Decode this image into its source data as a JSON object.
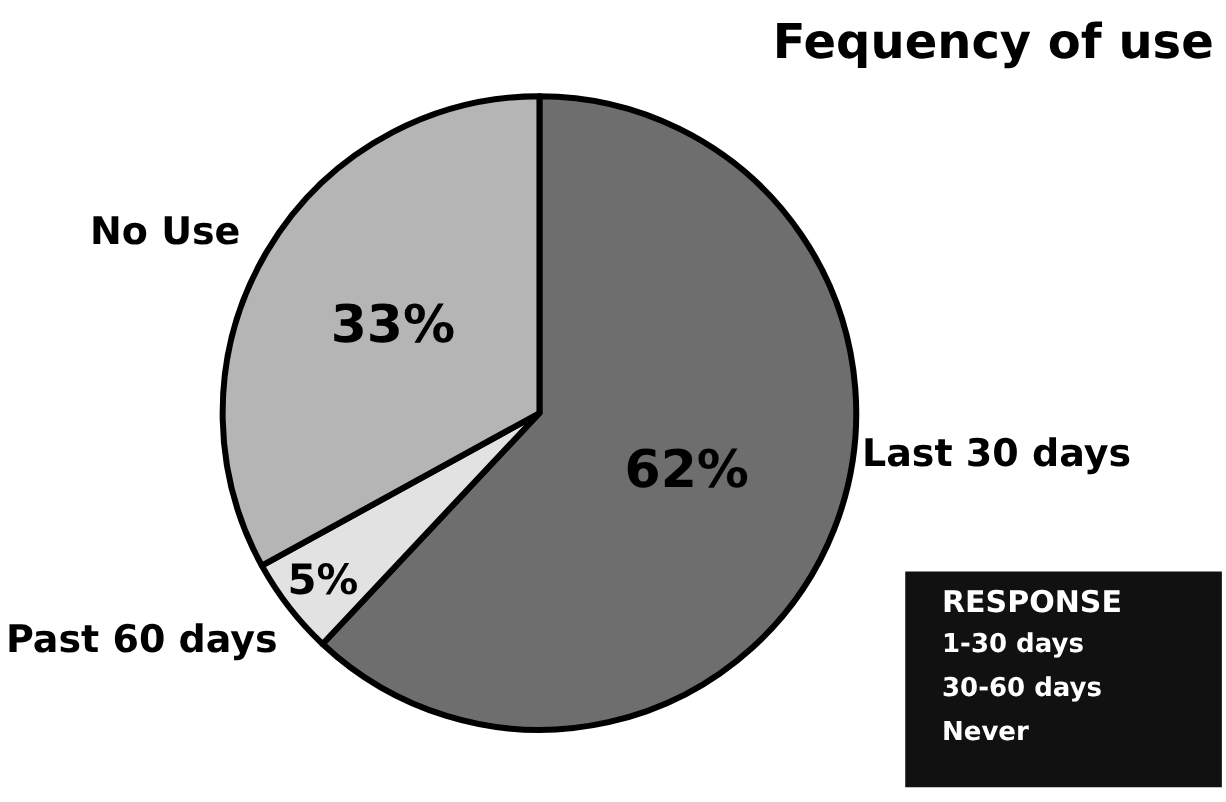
{
  "chart_data": {
    "type": "pie",
    "title": "Fequency of use",
    "categories": [
      "Last 30 days",
      "Past 60 days",
      "No Use"
    ],
    "values": [
      62,
      5,
      33
    ],
    "colors": [
      "#6e6e6e",
      "#e2e2e2",
      "#b5b5b5"
    ],
    "value_labels": [
      "62%",
      "5%",
      "33%"
    ],
    "legend": false,
    "annotations": [
      "RESPONSE",
      "1-30 days",
      "30-60 days",
      "Never"
    ]
  }
}
